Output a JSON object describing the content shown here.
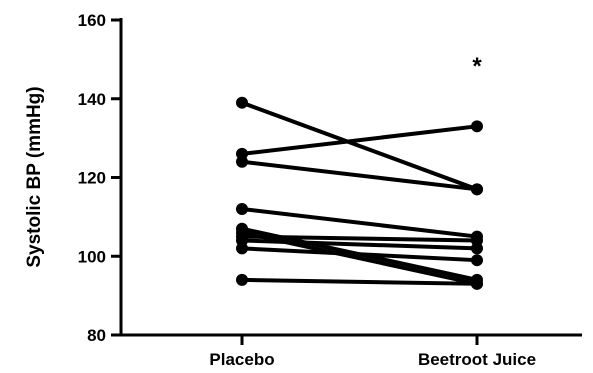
{
  "chart_data": {
    "type": "line",
    "ylabel": "Systolic BP (mmHg)",
    "xlabel": "",
    "categories": [
      "Placebo",
      "Beetroot Juice"
    ],
    "ylim": [
      80,
      160
    ],
    "yticks": [
      "80",
      "100",
      "120",
      "140",
      "160"
    ],
    "grid": false,
    "legend": "none",
    "annotation": "*",
    "pairs": [
      [
        139,
        117
      ],
      [
        126,
        133
      ],
      [
        124,
        117
      ],
      [
        112,
        105
      ],
      [
        107,
        94
      ],
      [
        106,
        93
      ],
      [
        105,
        104
      ],
      [
        104,
        102
      ],
      [
        102,
        99
      ],
      [
        94,
        93
      ]
    ]
  }
}
